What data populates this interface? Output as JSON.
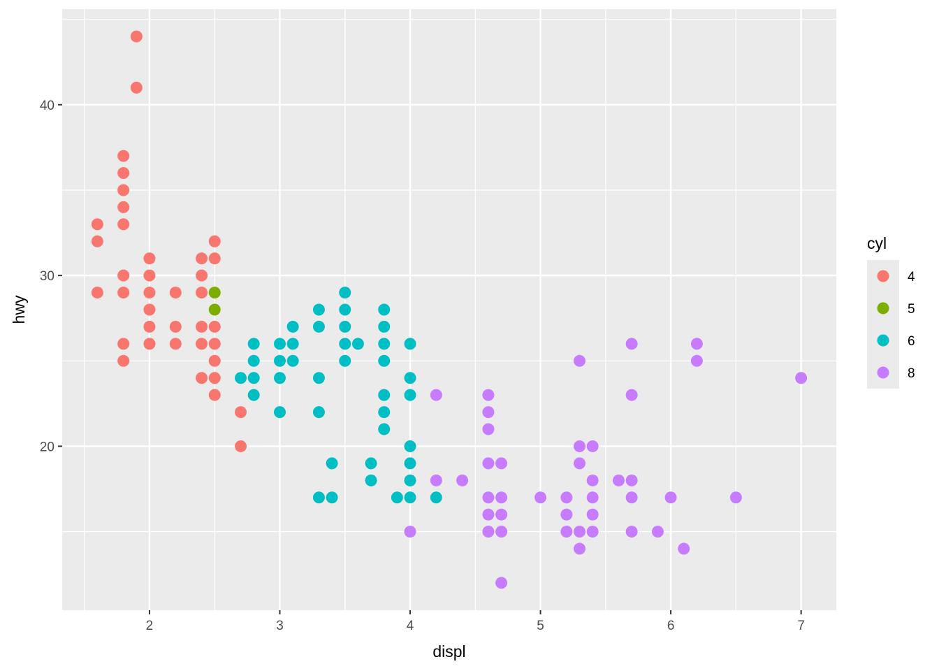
{
  "chart_data": {
    "type": "scatter",
    "xlabel": "displ",
    "ylabel": "hwy",
    "xlim": [
      1.33,
      7.27
    ],
    "ylim": [
      10.4,
      45.6
    ],
    "x_ticks": [
      2,
      3,
      4,
      5,
      6,
      7
    ],
    "y_ticks": [
      20,
      30,
      40
    ],
    "x_minor_ticks": [
      1.5,
      2.5,
      3.5,
      4.5,
      5.5,
      6.5
    ],
    "y_minor_ticks": [
      15,
      25,
      35,
      45
    ],
    "grid": true,
    "panel_background": "#ebebeb",
    "legend": {
      "title": "cyl",
      "position": "right",
      "entries": [
        {
          "label": "4",
          "color": "#F8766D"
        },
        {
          "label": "5",
          "color": "#7CAE00"
        },
        {
          "label": "6",
          "color": "#00BFC4"
        },
        {
          "label": "8",
          "color": "#C77CFF"
        }
      ]
    },
    "series": [
      {
        "group": "4",
        "color": "#F8766D",
        "points": [
          [
            1.6,
            33
          ],
          [
            1.6,
            32
          ],
          [
            1.6,
            29
          ],
          [
            1.8,
            37
          ],
          [
            1.8,
            36
          ],
          [
            1.8,
            35
          ],
          [
            1.8,
            34
          ],
          [
            1.8,
            33
          ],
          [
            1.8,
            30
          ],
          [
            1.8,
            29
          ],
          [
            1.8,
            26
          ],
          [
            1.8,
            25
          ],
          [
            1.9,
            44
          ],
          [
            1.9,
            41
          ],
          [
            2.0,
            31
          ],
          [
            2.0,
            30
          ],
          [
            2.0,
            29
          ],
          [
            2.0,
            28
          ],
          [
            2.0,
            27
          ],
          [
            2.0,
            26
          ],
          [
            2.2,
            29
          ],
          [
            2.2,
            27
          ],
          [
            2.2,
            26
          ],
          [
            2.4,
            31
          ],
          [
            2.4,
            30
          ],
          [
            2.4,
            29
          ],
          [
            2.4,
            27
          ],
          [
            2.4,
            26
          ],
          [
            2.4,
            24
          ],
          [
            2.5,
            32
          ],
          [
            2.5,
            31
          ],
          [
            2.5,
            27
          ],
          [
            2.5,
            26
          ],
          [
            2.5,
            25
          ],
          [
            2.5,
            24
          ],
          [
            2.5,
            23
          ],
          [
            2.7,
            22
          ],
          [
            2.7,
            20
          ]
        ]
      },
      {
        "group": "5",
        "color": "#7CAE00",
        "points": [
          [
            2.5,
            29
          ],
          [
            2.5,
            28
          ]
        ]
      },
      {
        "group": "6",
        "color": "#00BFC4",
        "points": [
          [
            2.7,
            24
          ],
          [
            2.8,
            26
          ],
          [
            2.8,
            25
          ],
          [
            2.8,
            24
          ],
          [
            2.8,
            23
          ],
          [
            3.0,
            26
          ],
          [
            3.0,
            25
          ],
          [
            3.0,
            24
          ],
          [
            3.0,
            22
          ],
          [
            3.1,
            27
          ],
          [
            3.1,
            26
          ],
          [
            3.1,
            25
          ],
          [
            3.3,
            28
          ],
          [
            3.3,
            27
          ],
          [
            3.3,
            24
          ],
          [
            3.3,
            22
          ],
          [
            3.3,
            17
          ],
          [
            3.4,
            19
          ],
          [
            3.4,
            17
          ],
          [
            3.5,
            29
          ],
          [
            3.5,
            28
          ],
          [
            3.5,
            27
          ],
          [
            3.5,
            26
          ],
          [
            3.5,
            25
          ],
          [
            3.6,
            26
          ],
          [
            3.7,
            19
          ],
          [
            3.7,
            18
          ],
          [
            3.8,
            28
          ],
          [
            3.8,
            27
          ],
          [
            3.8,
            26
          ],
          [
            3.8,
            25
          ],
          [
            3.8,
            23
          ],
          [
            3.8,
            22
          ],
          [
            3.8,
            21
          ],
          [
            3.9,
            17
          ],
          [
            4.0,
            26
          ],
          [
            4.0,
            24
          ],
          [
            4.0,
            23
          ],
          [
            4.0,
            20
          ],
          [
            4.0,
            19
          ],
          [
            4.0,
            18
          ],
          [
            4.0,
            17
          ],
          [
            4.2,
            17
          ]
        ]
      },
      {
        "group": "8",
        "color": "#C77CFF",
        "points": [
          [
            4.0,
            15
          ],
          [
            4.2,
            23
          ],
          [
            4.2,
            18
          ],
          [
            4.4,
            18
          ],
          [
            4.6,
            23
          ],
          [
            4.6,
            22
          ],
          [
            4.6,
            21
          ],
          [
            4.6,
            19
          ],
          [
            4.6,
            17
          ],
          [
            4.6,
            16
          ],
          [
            4.6,
            15
          ],
          [
            4.7,
            19
          ],
          [
            4.7,
            17
          ],
          [
            4.7,
            16
          ],
          [
            4.7,
            15
          ],
          [
            4.7,
            12
          ],
          [
            5.0,
            17
          ],
          [
            5.2,
            17
          ],
          [
            5.2,
            16
          ],
          [
            5.2,
            15
          ],
          [
            5.3,
            25
          ],
          [
            5.3,
            20
          ],
          [
            5.3,
            19
          ],
          [
            5.3,
            15
          ],
          [
            5.3,
            14
          ],
          [
            5.4,
            20
          ],
          [
            5.4,
            18
          ],
          [
            5.4,
            17
          ],
          [
            5.4,
            16
          ],
          [
            5.4,
            15
          ],
          [
            5.6,
            18
          ],
          [
            5.7,
            26
          ],
          [
            5.7,
            23
          ],
          [
            5.7,
            18
          ],
          [
            5.7,
            17
          ],
          [
            5.7,
            15
          ],
          [
            5.9,
            15
          ],
          [
            6.0,
            17
          ],
          [
            6.1,
            14
          ],
          [
            6.2,
            26
          ],
          [
            6.2,
            25
          ],
          [
            6.5,
            17
          ],
          [
            7.0,
            24
          ]
        ]
      }
    ]
  }
}
